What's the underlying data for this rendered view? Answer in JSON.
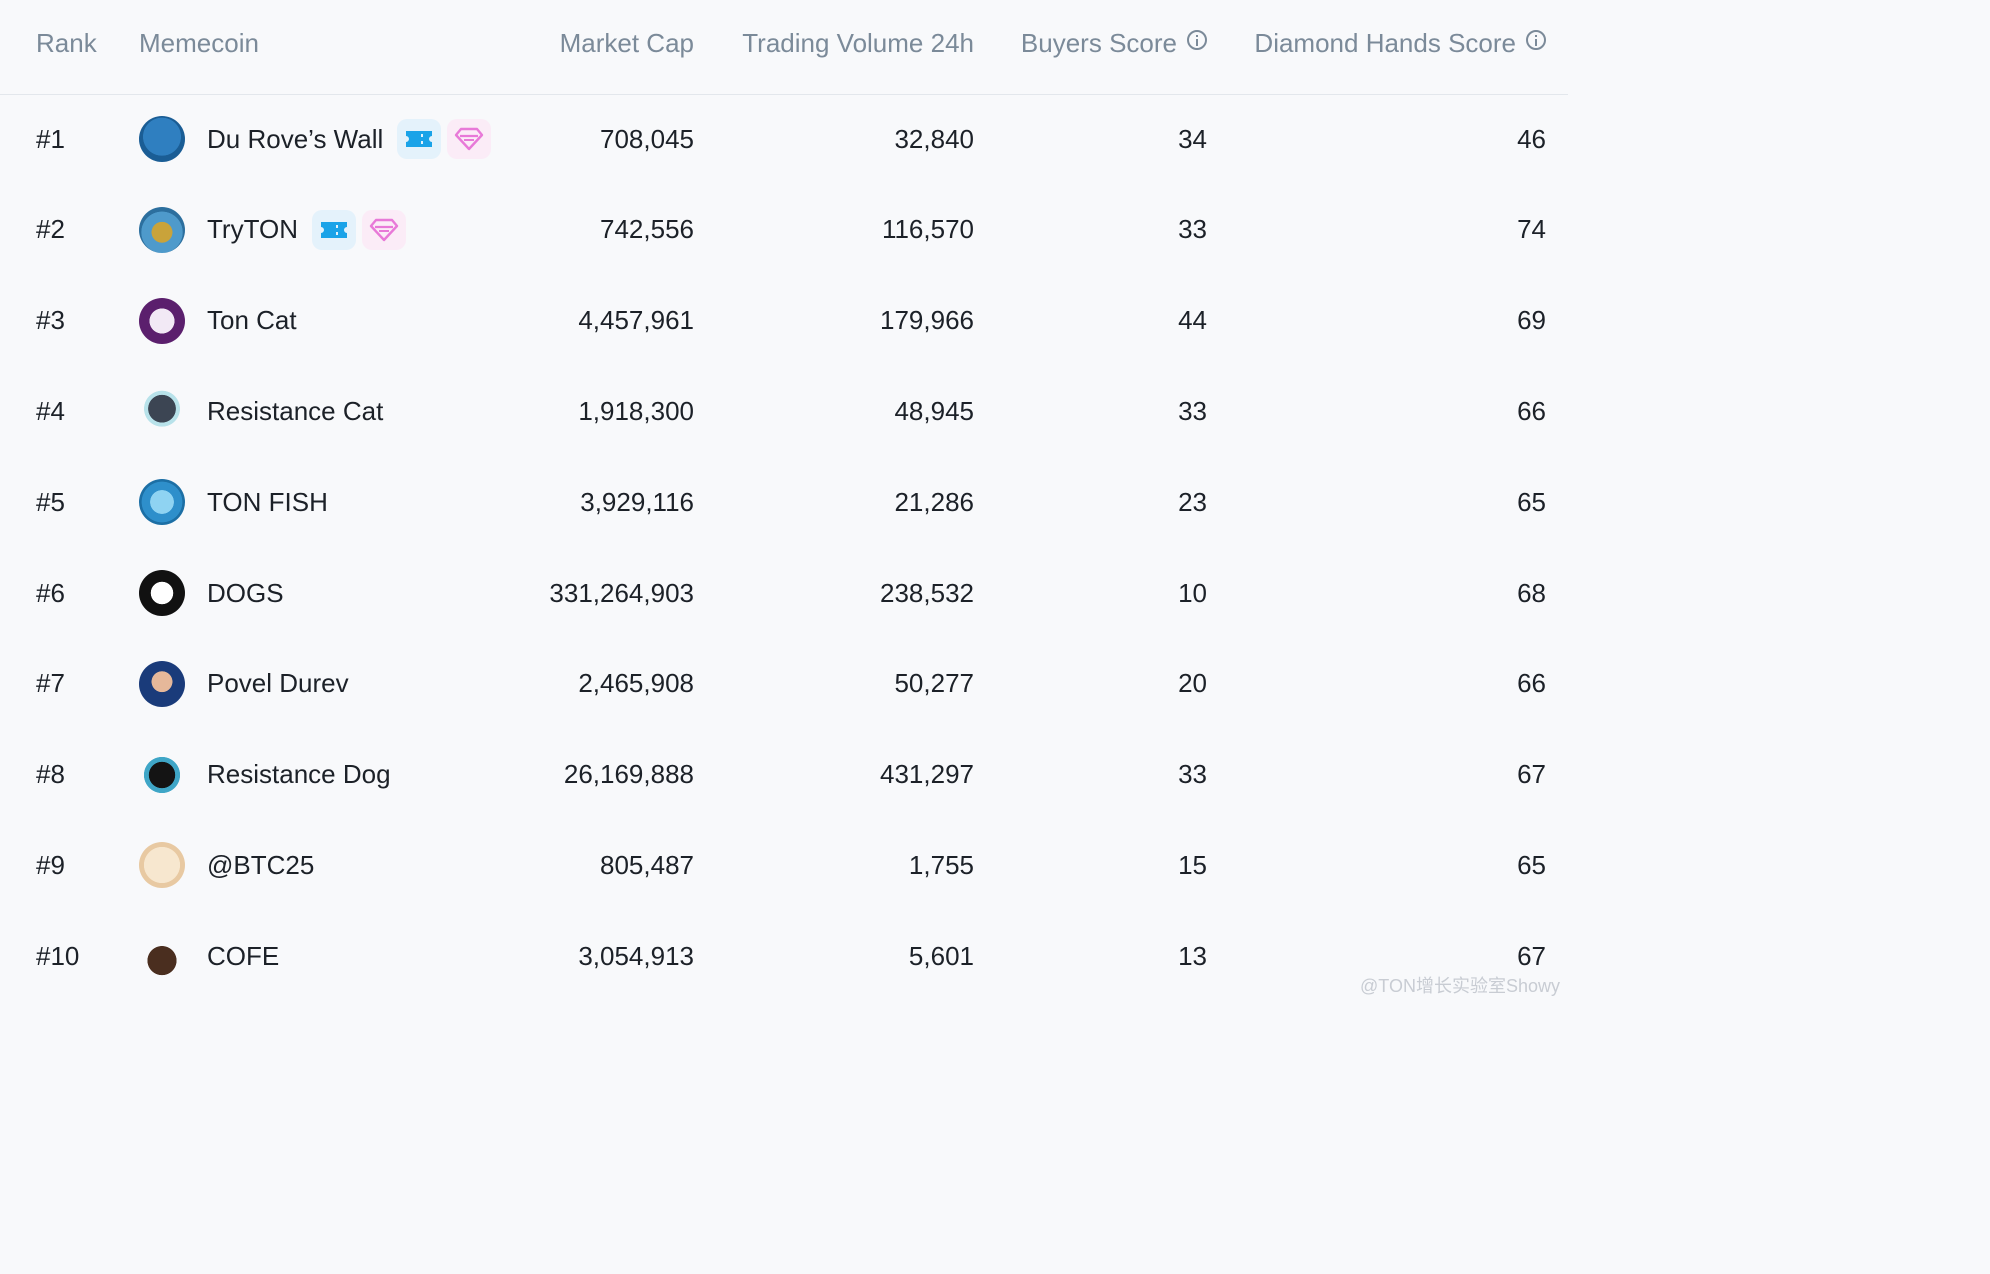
{
  "header": {
    "rank": "Rank",
    "memecoin": "Memecoin",
    "market_cap": "Market Cap",
    "volume": "Trading Volume 24h",
    "buyers": "Buyers Score",
    "diamond": "Diamond Hands Score"
  },
  "rows": [
    {
      "rank": "#1",
      "name": "Du Rove’s Wall",
      "market_cap": "708,045",
      "volume": "32,840",
      "buyers": "34",
      "diamond": "46",
      "icon": "pixel-man-avatar-icon",
      "badges": true
    },
    {
      "rank": "#2",
      "name": "TryTON",
      "market_cap": "742,556",
      "volume": "116,570",
      "buyers": "33",
      "diamond": "74",
      "icon": "tryton-frog-avatar-icon",
      "badges": true
    },
    {
      "rank": "#3",
      "name": "Ton Cat",
      "market_cap": "4,457,961",
      "volume": "179,966",
      "buyers": "44",
      "diamond": "69",
      "icon": "cat-avatar-icon",
      "badges": false
    },
    {
      "rank": "#4",
      "name": "Resistance Cat",
      "market_cap": "1,918,300",
      "volume": "48,945",
      "buyers": "33",
      "diamond": "66",
      "icon": "resistance-cat-avatar-icon",
      "badges": false
    },
    {
      "rank": "#5",
      "name": "TON FISH",
      "market_cap": "3,929,116",
      "volume": "21,286",
      "buyers": "23",
      "diamond": "65",
      "icon": "fish-avatar-icon",
      "badges": false
    },
    {
      "rank": "#6",
      "name": "DOGS",
      "market_cap": "331,264,903",
      "volume": "238,532",
      "buyers": "10",
      "diamond": "68",
      "icon": "dog-avatar-icon",
      "badges": false
    },
    {
      "rank": "#7",
      "name": "Povel Durev",
      "market_cap": "2,465,908",
      "volume": "50,277",
      "buyers": "20",
      "diamond": "66",
      "icon": "man-avatar-icon",
      "badges": false
    },
    {
      "rank": "#8",
      "name": "Resistance Dog",
      "market_cap": "26,169,888",
      "volume": "431,297",
      "buyers": "33",
      "diamond": "67",
      "icon": "hooded-dog-avatar-icon",
      "badges": false
    },
    {
      "rank": "#9",
      "name": "@BTC25",
      "market_cap": "805,487",
      "volume": "1,755",
      "buyers": "15",
      "diamond": "65",
      "icon": "shiba-avatar-icon",
      "badges": false
    },
    {
      "rank": "#10",
      "name": "COFE",
      "market_cap": "3,054,913",
      "volume": "5,601",
      "buyers": "13",
      "diamond": "67",
      "icon": "coffee-cup-avatar-icon",
      "badges": false
    }
  ],
  "watermark": "@TON增长实验室Showy",
  "colors": {
    "header_text": "#7b8a99",
    "ticket_badge": "#1aa3e8",
    "diamond_badge": "#e879d8"
  }
}
